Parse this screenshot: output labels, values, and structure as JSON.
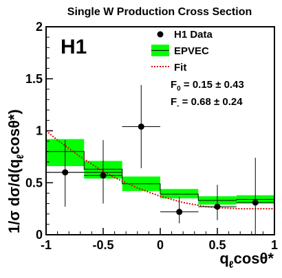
{
  "chart_data": {
    "type": "scatter",
    "title": "Single W Production Cross Section",
    "experiment_label": "H1",
    "xlim": [
      -1,
      1
    ],
    "ylim": [
      0,
      2
    ],
    "x_ticks": [
      "-1",
      "-0.5",
      "0",
      "0.5",
      "1"
    ],
    "y_ticks": [
      "0",
      "0.5",
      "1",
      "1.5",
      "2"
    ],
    "x_ticks_values": [
      -1,
      -0.5,
      0,
      0.5,
      1
    ],
    "y_ticks_values": [
      0,
      0.5,
      1,
      1.5,
      2
    ],
    "xlabel": {
      "main": "q",
      "sub": "ℓ",
      "rest": "cosθ*"
    },
    "ylabel": "1/σ dσ/d(q_ℓ cosθ*)",
    "ylabel_parts": {
      "pre": "1/σ dσ/d(q",
      "sub": "ℓ",
      "post": "cosθ*)"
    },
    "grid": false,
    "legend_placement": "top-right",
    "series": [
      {
        "name": "H1 Data",
        "kind": "points-with-errors",
        "color": "#000000",
        "points": [
          {
            "x": -0.833,
            "y": 0.6,
            "xerr": 0.167,
            "yerr_low": 0.33,
            "yerr_high": 0.31
          },
          {
            "x": -0.5,
            "y": 0.57,
            "xerr": 0.167,
            "yerr_low": 0.27,
            "yerr_high": 0.34
          },
          {
            "x": -0.167,
            "y": 1.04,
            "xerr": 0.167,
            "yerr_low": 0.4,
            "yerr_high": 0.4
          },
          {
            "x": 0.167,
            "y": 0.22,
            "xerr": 0.167,
            "yerr_low": 0.11,
            "yerr_high": 0.14
          },
          {
            "x": 0.5,
            "y": 0.27,
            "xerr": 0.167,
            "yerr_low": 0.13,
            "yerr_high": 0.21
          },
          {
            "x": 0.833,
            "y": 0.31,
            "xerr": 0.167,
            "yerr_low": 0.31,
            "yerr_high": 0.43
          }
        ]
      },
      {
        "name": "EPVEC",
        "kind": "histogram-band",
        "line_color": "#000000",
        "band_color": "#00ff00",
        "bins": [
          {
            "x0": -1.0,
            "x1": -0.667,
            "y": 0.8,
            "low": 0.66,
            "high": 0.92
          },
          {
            "x0": -0.667,
            "x1": -0.333,
            "y": 0.63,
            "low": 0.54,
            "high": 0.71
          },
          {
            "x0": -0.333,
            "x1": 0.0,
            "y": 0.49,
            "low": 0.42,
            "high": 0.56
          },
          {
            "x0": 0.0,
            "x1": 0.333,
            "y": 0.39,
            "low": 0.35,
            "high": 0.44
          },
          {
            "x0": 0.333,
            "x1": 0.667,
            "y": 0.33,
            "low": 0.29,
            "high": 0.37
          },
          {
            "x0": 0.667,
            "x1": 1.0,
            "y": 0.34,
            "low": 0.3,
            "high": 0.38
          }
        ],
        "reference_line_y": 0.6
      },
      {
        "name": "Fit",
        "kind": "dotted-curve",
        "color": "#dd0000",
        "x": [
          -1.0,
          -0.9,
          -0.8,
          -0.7,
          -0.6,
          -0.5,
          -0.4,
          -0.3,
          -0.2,
          -0.1,
          0.0,
          0.1,
          0.2,
          0.3,
          0.4,
          0.5,
          0.6,
          0.7,
          0.8,
          0.9,
          1.0
        ],
        "y": [
          1.0,
          0.91,
          0.83,
          0.75,
          0.68,
          0.61,
          0.55,
          0.5,
          0.45,
          0.41,
          0.37,
          0.34,
          0.31,
          0.29,
          0.27,
          0.26,
          0.255,
          0.25,
          0.25,
          0.25,
          0.25
        ]
      }
    ],
    "annotations": [
      {
        "label": "F",
        "sub": "0",
        "text": " = 0.15 ± 0.43"
      },
      {
        "label": "F",
        "sub": "-",
        "text": " = 0.68 ± 0.24"
      }
    ]
  },
  "colors": {
    "band": "#00ff00",
    "fit": "#dd0000",
    "axis": "#000000"
  }
}
